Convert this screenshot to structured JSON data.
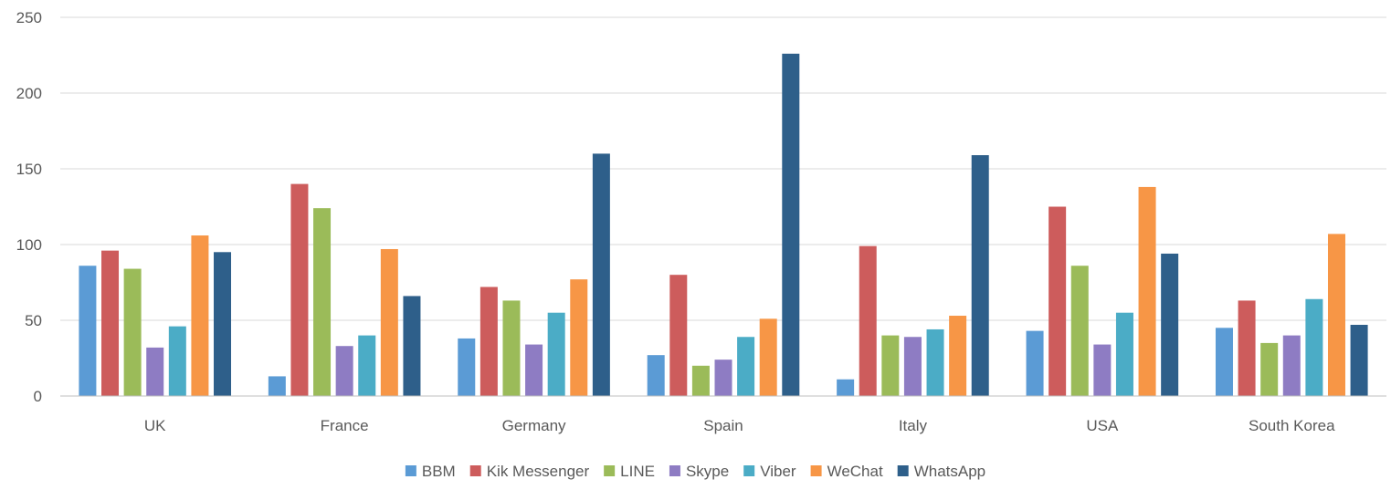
{
  "chart_data": {
    "type": "bar",
    "title": "",
    "xlabel": "",
    "ylabel": "",
    "ylim": [
      0,
      250
    ],
    "yticks": [
      0,
      50,
      100,
      150,
      200,
      250
    ],
    "grid": true,
    "legend_position": "bottom",
    "categories": [
      "UK",
      "France",
      "Germany",
      "Spain",
      "Italy",
      "USA",
      "South Korea"
    ],
    "series": [
      {
        "name": "BBM",
        "color": "#5B9BD5",
        "values": [
          86,
          13,
          38,
          27,
          11,
          43,
          45
        ]
      },
      {
        "name": "Kik Messenger",
        "color": "#CD5C5C",
        "values": [
          96,
          140,
          72,
          80,
          99,
          125,
          63
        ]
      },
      {
        "name": "LINE",
        "color": "#9BBB59",
        "values": [
          84,
          124,
          63,
          20,
          40,
          86,
          35
        ]
      },
      {
        "name": "Skype",
        "color": "#8E7CC3",
        "values": [
          32,
          33,
          34,
          24,
          39,
          34,
          40
        ]
      },
      {
        "name": "Viber",
        "color": "#4BACC6",
        "values": [
          46,
          40,
          55,
          39,
          44,
          55,
          64
        ]
      },
      {
        "name": "WeChat",
        "color": "#F79646",
        "values": [
          106,
          97,
          77,
          51,
          53,
          138,
          107
        ]
      },
      {
        "name": "WhatsApp",
        "color": "#2E5F8A",
        "values": [
          95,
          66,
          160,
          226,
          159,
          94,
          47
        ]
      }
    ]
  }
}
